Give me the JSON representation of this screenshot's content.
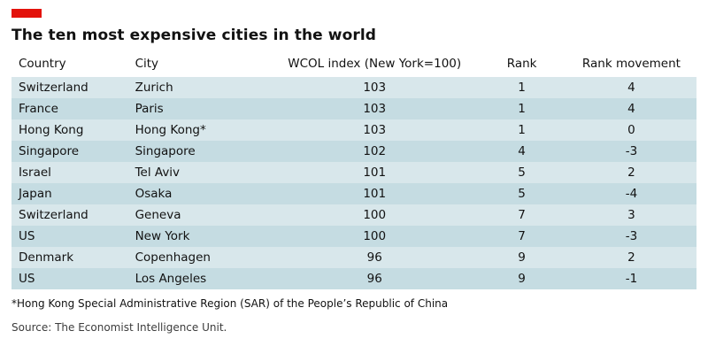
{
  "accent_color": "#e3120b",
  "title": "The ten most expensive cities in the world",
  "chart_data": {
    "type": "table",
    "columns": [
      "Country",
      "City",
      "WCOL index (New York=100)",
      "Rank",
      "Rank movement"
    ],
    "rows": [
      [
        "Switzerland",
        "Zurich",
        "103",
        "1",
        "4"
      ],
      [
        "France",
        "Paris",
        "103",
        "1",
        "4"
      ],
      [
        "Hong Kong",
        "Hong Kong*",
        "103",
        "1",
        "0"
      ],
      [
        "Singapore",
        "Singapore",
        "102",
        "4",
        "-3"
      ],
      [
        "Israel",
        "Tel Aviv",
        "101",
        "5",
        "2"
      ],
      [
        "Japan",
        "Osaka",
        "101",
        "5",
        "-4"
      ],
      [
        "Switzerland",
        "Geneva",
        "100",
        "7",
        "3"
      ],
      [
        "US",
        "New York",
        "100",
        "7",
        "-3"
      ],
      [
        "Denmark",
        "Copenhagen",
        "96",
        "9",
        "2"
      ],
      [
        "US",
        "Los Angeles",
        "96",
        "9",
        "-1"
      ]
    ],
    "row_colors": [
      "#d8e7eb",
      "#c5dce2"
    ]
  },
  "footnote": "*Hong Kong Special Administrative Region (SAR) of the People’s Republic of China",
  "source": "Source: The Economist Intelligence Unit."
}
